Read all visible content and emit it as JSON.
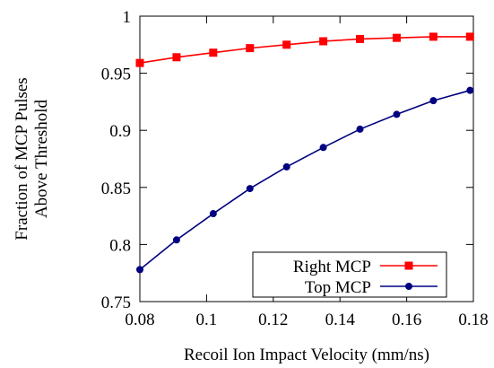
{
  "chart_data": {
    "type": "line",
    "xlabel": "Recoil Ion Impact Velocity (mm/ns)",
    "ylabel": [
      "Fraction of MCP Pulses",
      "Above Threshold"
    ],
    "xlim": [
      0.08,
      0.18
    ],
    "ylim": [
      0.75,
      1.0
    ],
    "x_ticks": [
      "0.08",
      "0.1",
      "0.12",
      "0.14",
      "0.16",
      "0.18"
    ],
    "y_ticks": [
      "0.75",
      "0.8",
      "0.85",
      "0.9",
      "0.95",
      "1"
    ],
    "grid": false,
    "legend_position": "bottom-right",
    "x": [
      0.08,
      0.091,
      0.102,
      0.113,
      0.124,
      0.135,
      0.146,
      0.157,
      0.168,
      0.179
    ],
    "series": [
      {
        "name": "Right MCP",
        "color": "#ff0000",
        "marker": "square",
        "values": [
          0.959,
          0.964,
          0.968,
          0.972,
          0.975,
          0.978,
          0.98,
          0.981,
          0.982,
          0.982
        ]
      },
      {
        "name": "Top MCP",
        "color": "#000080",
        "marker": "circle",
        "values": [
          0.778,
          0.804,
          0.827,
          0.849,
          0.868,
          0.885,
          0.901,
          0.914,
          0.926,
          0.935
        ]
      }
    ]
  }
}
